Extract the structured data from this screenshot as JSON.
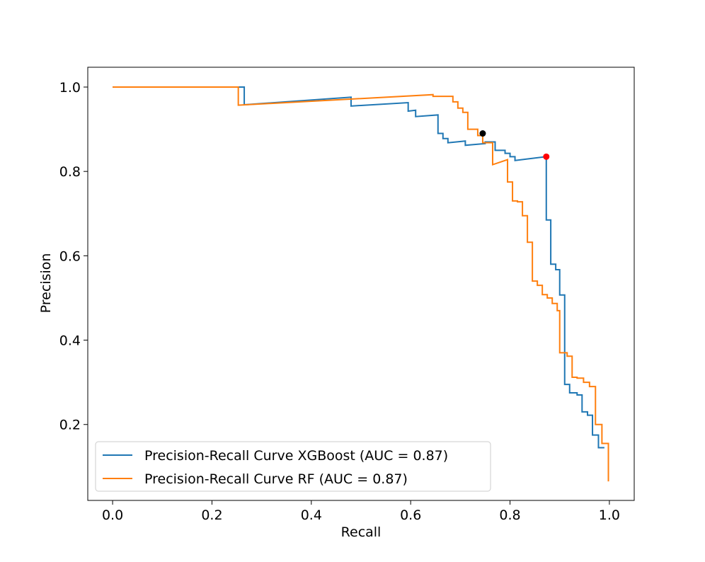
{
  "chart_data": {
    "type": "line",
    "title": "",
    "xlabel": "Recall",
    "ylabel": "Precision",
    "xlim": [
      -0.05,
      1.05
    ],
    "ylim": [
      0.02,
      1.047
    ],
    "xticks": [
      0.0,
      0.2,
      0.4,
      0.6,
      0.8,
      1.0
    ],
    "xtick_labels": [
      "0.0",
      "0.2",
      "0.4",
      "0.6",
      "0.8",
      "1.0"
    ],
    "yticks": [
      0.2,
      0.4,
      0.6,
      0.8,
      1.0
    ],
    "ytick_labels": [
      "0.2",
      "0.4",
      "0.6",
      "0.8",
      "1.0"
    ],
    "grid": false,
    "legend_position": "lower-left",
    "series": [
      {
        "name": "Precision-Recall Curve XGBoost (AUC = 0.87)",
        "color": "#1f77b4",
        "points": [
          [
            0.0,
            1.0
          ],
          [
            0.265,
            1.0
          ],
          [
            0.265,
            0.958
          ],
          [
            0.48,
            0.976
          ],
          [
            0.48,
            0.955
          ],
          [
            0.595,
            0.963
          ],
          [
            0.595,
            0.943
          ],
          [
            0.61,
            0.945
          ],
          [
            0.61,
            0.93
          ],
          [
            0.655,
            0.934
          ],
          [
            0.655,
            0.89
          ],
          [
            0.665,
            0.89
          ],
          [
            0.665,
            0.878
          ],
          [
            0.675,
            0.878
          ],
          [
            0.675,
            0.868
          ],
          [
            0.71,
            0.872
          ],
          [
            0.71,
            0.862
          ],
          [
            0.75,
            0.866
          ],
          [
            0.75,
            0.87
          ],
          [
            0.77,
            0.87
          ],
          [
            0.77,
            0.85
          ],
          [
            0.79,
            0.85
          ],
          [
            0.79,
            0.843
          ],
          [
            0.8,
            0.843
          ],
          [
            0.8,
            0.835
          ],
          [
            0.81,
            0.835
          ],
          [
            0.81,
            0.826
          ],
          [
            0.873,
            0.835
          ],
          [
            0.873,
            0.685
          ],
          [
            0.882,
            0.685
          ],
          [
            0.882,
            0.58
          ],
          [
            0.892,
            0.58
          ],
          [
            0.892,
            0.567
          ],
          [
            0.9,
            0.567
          ],
          [
            0.9,
            0.507
          ],
          [
            0.91,
            0.507
          ],
          [
            0.91,
            0.295
          ],
          [
            0.92,
            0.295
          ],
          [
            0.92,
            0.275
          ],
          [
            0.935,
            0.275
          ],
          [
            0.935,
            0.27
          ],
          [
            0.945,
            0.27
          ],
          [
            0.945,
            0.23
          ],
          [
            0.956,
            0.23
          ],
          [
            0.956,
            0.222
          ],
          [
            0.966,
            0.222
          ],
          [
            0.966,
            0.175
          ],
          [
            0.978,
            0.175
          ],
          [
            0.978,
            0.145
          ],
          [
            0.99,
            0.145
          ]
        ]
      },
      {
        "name": "Precision-Recall Curve RF (AUC = 0.87)",
        "color": "#ff7f0e",
        "points": [
          [
            0.0,
            1.0
          ],
          [
            0.253,
            1.0
          ],
          [
            0.253,
            0.957
          ],
          [
            0.645,
            0.982
          ],
          [
            0.645,
            0.978
          ],
          [
            0.685,
            0.978
          ],
          [
            0.685,
            0.965
          ],
          [
            0.695,
            0.965
          ],
          [
            0.695,
            0.95
          ],
          [
            0.705,
            0.95
          ],
          [
            0.705,
            0.94
          ],
          [
            0.715,
            0.94
          ],
          [
            0.715,
            0.9
          ],
          [
            0.735,
            0.9
          ],
          [
            0.735,
            0.885
          ],
          [
            0.745,
            0.885
          ],
          [
            0.745,
            0.868
          ],
          [
            0.765,
            0.868
          ],
          [
            0.765,
            0.816
          ],
          [
            0.795,
            0.828
          ],
          [
            0.795,
            0.775
          ],
          [
            0.805,
            0.775
          ],
          [
            0.805,
            0.73
          ],
          [
            0.815,
            0.73
          ],
          [
            0.815,
            0.728
          ],
          [
            0.825,
            0.728
          ],
          [
            0.825,
            0.695
          ],
          [
            0.835,
            0.695
          ],
          [
            0.835,
            0.632
          ],
          [
            0.845,
            0.632
          ],
          [
            0.845,
            0.54
          ],
          [
            0.855,
            0.54
          ],
          [
            0.855,
            0.53
          ],
          [
            0.865,
            0.53
          ],
          [
            0.865,
            0.508
          ],
          [
            0.875,
            0.508
          ],
          [
            0.875,
            0.5
          ],
          [
            0.885,
            0.5
          ],
          [
            0.885,
            0.487
          ],
          [
            0.895,
            0.487
          ],
          [
            0.895,
            0.47
          ],
          [
            0.9,
            0.47
          ],
          [
            0.9,
            0.37
          ],
          [
            0.915,
            0.37
          ],
          [
            0.915,
            0.362
          ],
          [
            0.925,
            0.362
          ],
          [
            0.925,
            0.312
          ],
          [
            0.935,
            0.312
          ],
          [
            0.935,
            0.31
          ],
          [
            0.948,
            0.31
          ],
          [
            0.948,
            0.3
          ],
          [
            0.96,
            0.3
          ],
          [
            0.96,
            0.29
          ],
          [
            0.972,
            0.29
          ],
          [
            0.972,
            0.2
          ],
          [
            0.985,
            0.2
          ],
          [
            0.985,
            0.155
          ],
          [
            0.998,
            0.155
          ],
          [
            0.998,
            0.065
          ]
        ]
      }
    ],
    "markers": [
      {
        "name": "optimal-threshold-rf",
        "x": 0.745,
        "y": 0.89,
        "color": "#000000"
      },
      {
        "name": "optimal-threshold-xgboost",
        "x": 0.873,
        "y": 0.835,
        "color": "#ff0000"
      }
    ]
  }
}
